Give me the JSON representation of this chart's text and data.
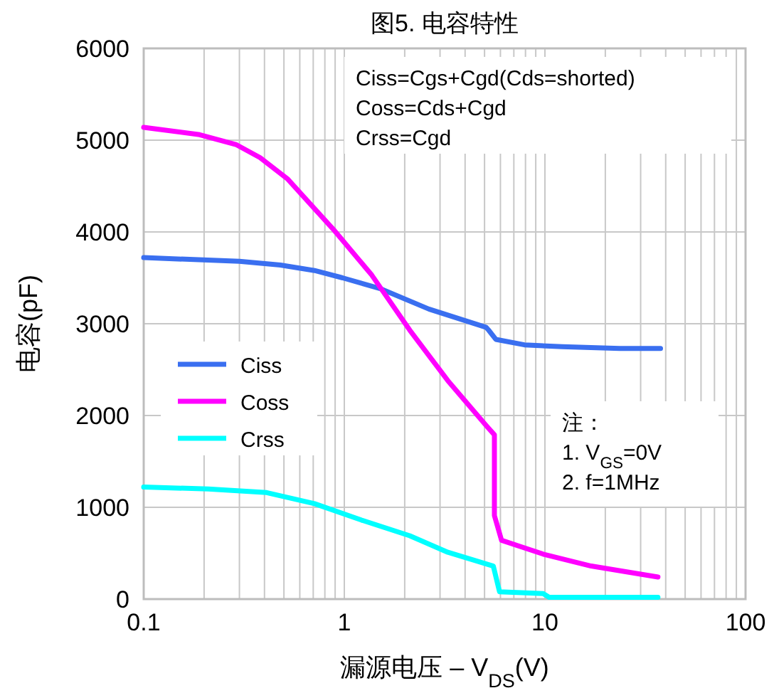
{
  "chart_data": {
    "type": "line",
    "title": "图5. 电容特性",
    "xlabel": "漏源电压 – V$_{DS}$(V)",
    "ylabel": "电容(pF)",
    "log": "x",
    "xlim": [
      0.1,
      100
    ],
    "xticks": [
      0.1,
      1,
      10,
      100
    ],
    "ylim": [
      0,
      6000
    ],
    "yticks": [
      0,
      1000,
      2000,
      3000,
      4000,
      5000,
      6000
    ],
    "grid": true,
    "legend": "left",
    "marker": "none",
    "line_style": "solid",
    "series": [
      {
        "name": "Ciss",
        "color": "#3a6ff0",
        "x": [
          0.1,
          0.3,
          0.48,
          0.71,
          0.98,
          1.52,
          2.64,
          5.1,
          5.24,
          5.69,
          7.9,
          12.2,
          23.6,
          37.7
        ],
        "values": [
          3720,
          3680,
          3640,
          3580,
          3500,
          3380,
          3160,
          2960,
          2930,
          2830,
          2770,
          2750,
          2730,
          2730
        ]
      },
      {
        "name": "Coss",
        "color": "#ff00ff",
        "x": [
          0.1,
          0.19,
          0.29,
          0.38,
          0.52,
          0.88,
          1.37,
          2.12,
          3.28,
          5.1,
          5.6,
          5.6,
          6.08,
          9.8,
          17,
          36.6
        ],
        "values": [
          5140,
          5060,
          4950,
          4810,
          4580,
          4030,
          3530,
          2930,
          2380,
          1890,
          1790,
          910,
          640,
          490,
          360,
          240
        ]
      },
      {
        "name": "Crss",
        "color": "#00ffff",
        "x": [
          0.1,
          0.21,
          0.41,
          0.71,
          1.22,
          2.12,
          3.28,
          5.53,
          5.94,
          9.8,
          10.5,
          36.6
        ],
        "values": [
          1220,
          1200,
          1160,
          1040,
          860,
          690,
          510,
          360,
          80,
          60,
          20,
          20
        ]
      }
    ],
    "annotations": [
      "Ciss=Cgs+Cgd(Cds=shorted)\nCoss=Cds+Cgd\nCrss=Cgd",
      "注：\n1. V$_{GS}$=0V\n2. f=1MHz"
    ]
  }
}
